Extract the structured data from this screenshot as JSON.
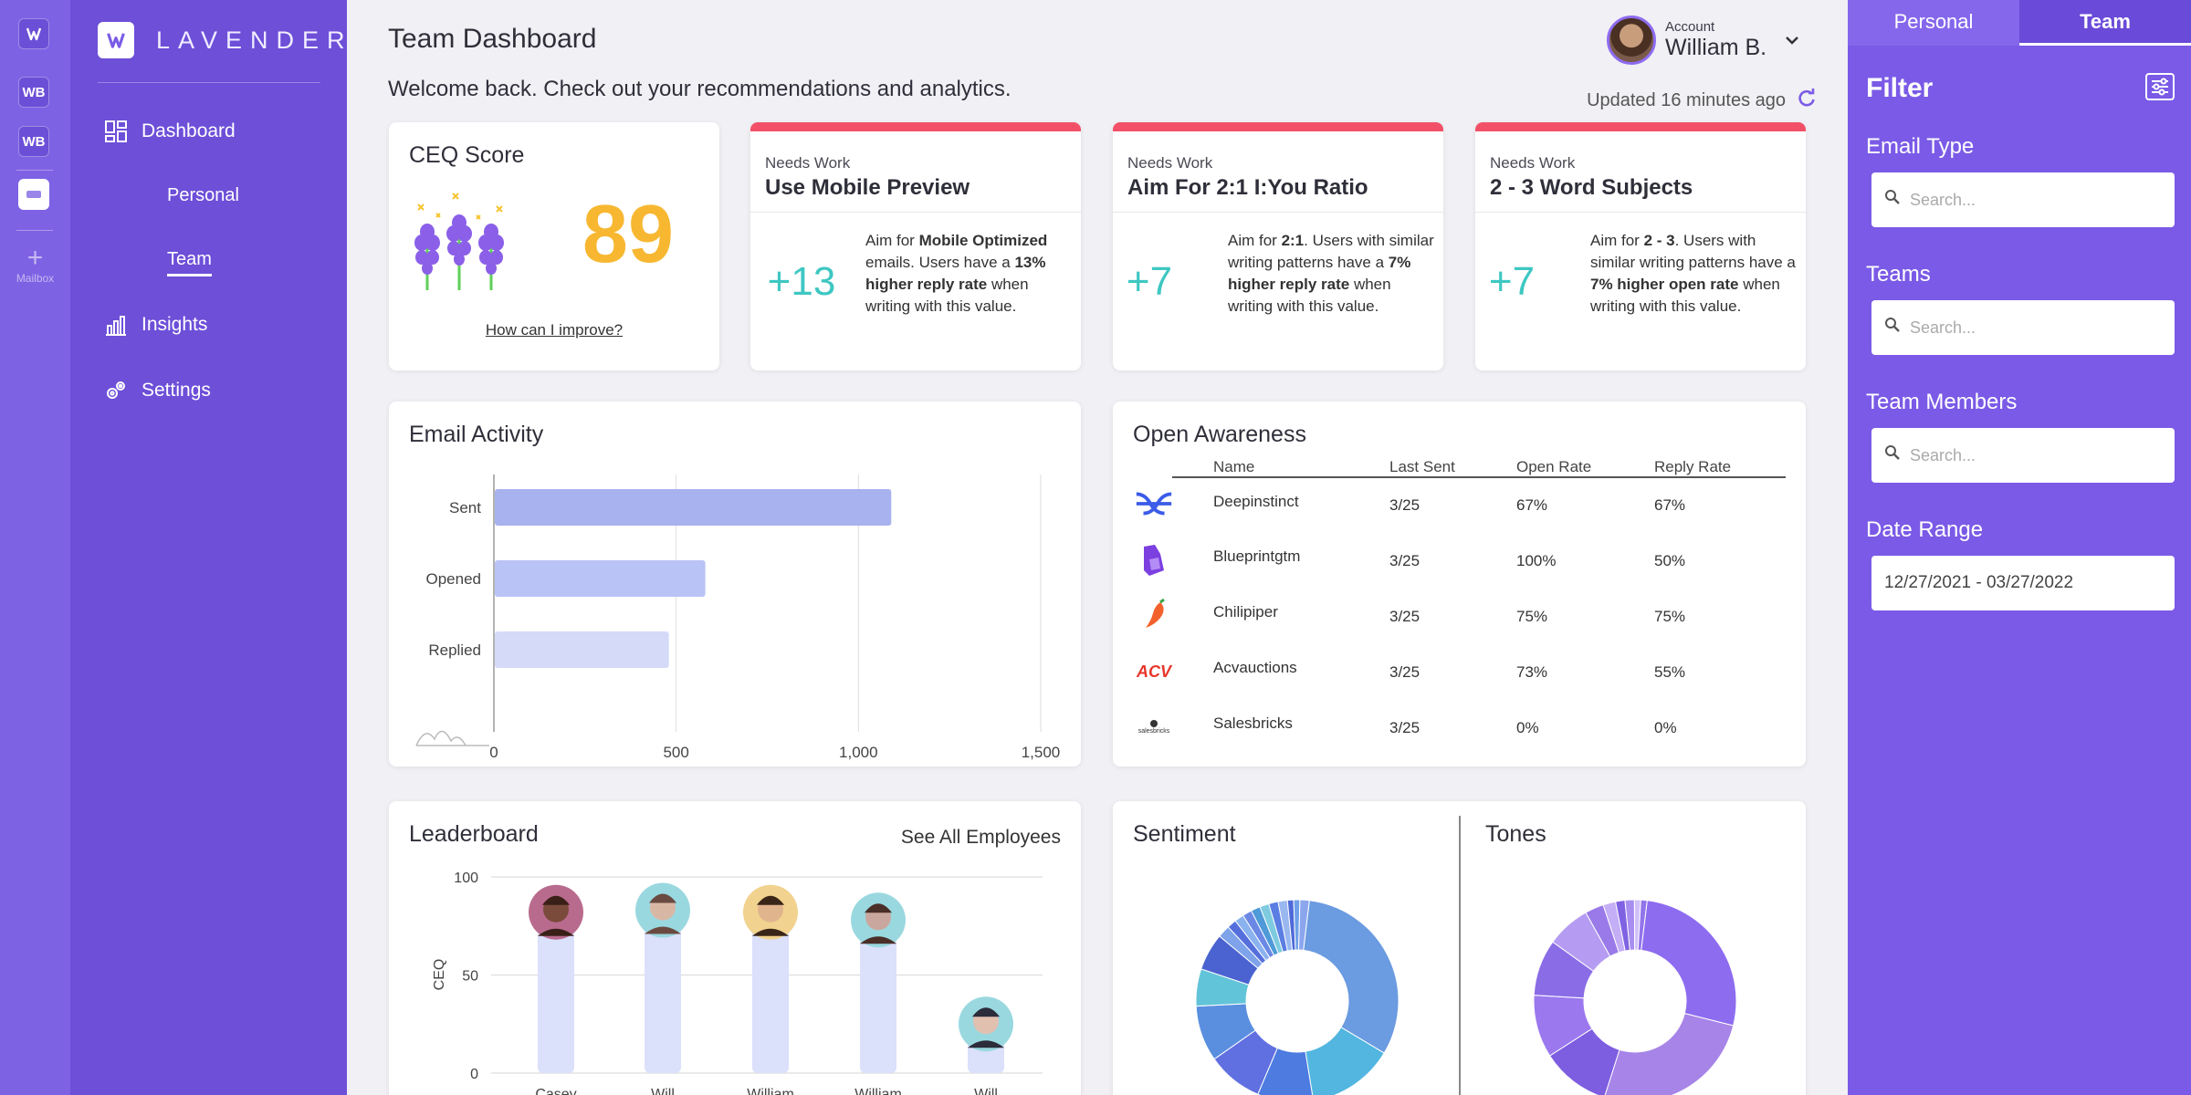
{
  "rail": {
    "items": [
      "WB",
      "WB"
    ],
    "add_label": "Mailbox"
  },
  "sidebar": {
    "brand": "LAVENDER",
    "nav": {
      "dashboard": "Dashboard",
      "personal": "Personal",
      "team": "Team",
      "insights": "Insights",
      "settings": "Settings"
    }
  },
  "header": {
    "title": "Team Dashboard",
    "welcome": "Welcome back. Check out your recommendations and analytics.",
    "account_label": "Account",
    "account_name": "William B.",
    "updated": "Updated 16 minutes ago"
  },
  "ceq": {
    "title": "CEQ Score",
    "score": "89",
    "link": "How can I improve?"
  },
  "recommendations": [
    {
      "tag": "Needs Work",
      "title": "Use Mobile Preview",
      "value": "+13",
      "parts": [
        [
          "Aim for ",
          false
        ],
        [
          "Mobile Optimized",
          true
        ],
        [
          " emails. Users have a ",
          false
        ],
        [
          "13% higher reply rate",
          true
        ],
        [
          " when writing with this value.",
          false
        ]
      ]
    },
    {
      "tag": "Needs Work",
      "title": "Aim For 2:1 I:You Ratio",
      "value": "+7",
      "parts": [
        [
          "Aim for ",
          false
        ],
        [
          "2:1",
          true
        ],
        [
          ". Users with similar writing patterns have a ",
          false
        ],
        [
          "7% higher reply rate",
          true
        ],
        [
          " when writing with this value.",
          false
        ]
      ]
    },
    {
      "tag": "Needs Work",
      "title": "2 - 3 Word Subjects",
      "value": "+7",
      "parts": [
        [
          "Aim for ",
          false
        ],
        [
          "2 - 3",
          true
        ],
        [
          ". Users with similar writing patterns have a ",
          false
        ],
        [
          "7% higher open rate",
          true
        ],
        [
          " when writing with this value.",
          false
        ]
      ]
    }
  ],
  "email_activity": {
    "title": "Email Activity",
    "chart_data": {
      "type": "bar",
      "orientation": "horizontal",
      "categories": [
        "Sent",
        "Opened",
        "Replied"
      ],
      "values": [
        1090,
        580,
        480
      ],
      "xlim": [
        0,
        1500
      ],
      "ticks": [
        "0",
        "500",
        "1,000",
        "1,500"
      ],
      "colors": [
        "#a8b2ee",
        "#bac3f5",
        "#d5daf9"
      ],
      "grid": true
    }
  },
  "open_awareness": {
    "title": "Open Awareness",
    "columns": [
      "Name",
      "Last Sent",
      "Open Rate",
      "Reply Rate"
    ],
    "rows": [
      {
        "name": "Deepinstinct",
        "last": "3/25",
        "open": "67%",
        "reply": "67%"
      },
      {
        "name": "Blueprintgtm",
        "last": "3/25",
        "open": "100%",
        "reply": "50%"
      },
      {
        "name": "Chilipiper",
        "last": "3/25",
        "open": "75%",
        "reply": "75%"
      },
      {
        "name": "Acvauctions",
        "last": "3/25",
        "open": "73%",
        "reply": "55%"
      },
      {
        "name": "Salesbricks",
        "last": "3/25",
        "open": "0%",
        "reply": "0%"
      }
    ],
    "logo_text": {
      "acv": "ACV",
      "salesbricks": "salesbricks"
    }
  },
  "leaderboard": {
    "title": "Leaderboard",
    "link": "See All Employees",
    "chart_data": {
      "type": "bar",
      "categories": [
        "Casey",
        "Will",
        "William",
        "William",
        "Will"
      ],
      "values": [
        82,
        83,
        82,
        78,
        25
      ],
      "ylim": [
        0,
        100
      ],
      "yticks": [
        0,
        50,
        100
      ],
      "ylabel": "CEQ",
      "color": "#dbe0fb"
    }
  },
  "sentiment": {
    "title": "Sentiment",
    "chart_data": {
      "type": "pie",
      "donut": true,
      "values": [
        32,
        14,
        9,
        9,
        9,
        6,
        6,
        2,
        1.5,
        1.5,
        1.5,
        1.5,
        1.5,
        1.5,
        1.5,
        1,
        1,
        1.5
      ],
      "colors": [
        "#6b9be0",
        "#52b6e0",
        "#4d7be0",
        "#6070e0",
        "#5a8fe0",
        "#62c4d8",
        "#4a63d0",
        "#7ea3ea",
        "#5570dc",
        "#8ab2ee",
        "#6a88e4",
        "#4f9ad8",
        "#7ecbe0",
        "#5a7ee2",
        "#9ab8f0",
        "#4f6ad8",
        "#6fa0e8",
        "#8ca6ee"
      ]
    }
  },
  "tones": {
    "title": "Tones",
    "chart_data": {
      "type": "pie",
      "donut": true,
      "values": [
        27,
        26,
        11,
        10,
        9,
        7,
        3,
        2,
        1.5,
        1.5,
        1,
        1
      ],
      "colors": [
        "#8d6cf0",
        "#a784e8",
        "#7d5de0",
        "#9b78ee",
        "#8a6ce6",
        "#b59cf2",
        "#9a7ae8",
        "#c4aef6",
        "#7f62e2",
        "#a88ef0",
        "#d0c0f8",
        "#9274ea"
      ]
    }
  },
  "filter": {
    "tabs": [
      "Personal",
      "Team"
    ],
    "title": "Filter",
    "email_type": "Email Type",
    "teams": "Teams",
    "team_members": "Team Members",
    "date_range": "Date Range",
    "placeholder": "Search...",
    "date_value": "12/27/2021 - 03/27/2022"
  },
  "colors": {
    "accent": "#6d4fd8",
    "needs_work": "#f25068",
    "score": "#f7b731",
    "teal": "#3ec7c2"
  }
}
